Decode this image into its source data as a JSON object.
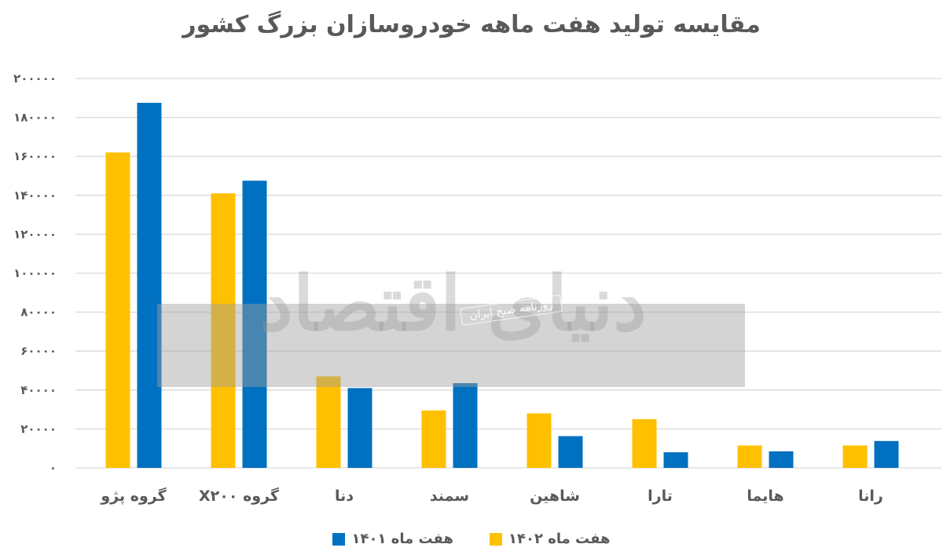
{
  "chart_data": {
    "type": "bar",
    "title": "مقایسه تولید هفت ماهه خودروسازان بزرگ کشور",
    "categories": [
      "گروه پژو",
      "گروه X۲۰۰",
      "دنا",
      "سمند",
      "شاهین",
      "تارا",
      "هایما",
      "رانا"
    ],
    "series": [
      {
        "name": "هفت ماه ۱۴۰۲",
        "color": "#FFC000",
        "values": [
          162000,
          141000,
          47000,
          29500,
          28000,
          25000,
          11500,
          11500
        ]
      },
      {
        "name": "هفت ماه ۱۴۰۱",
        "color": "#0070C0",
        "values": [
          187500,
          147500,
          41000,
          43500,
          16300,
          8000,
          8500,
          13800
        ]
      }
    ],
    "ylim": [
      0,
      200000
    ],
    "yticks": [
      0,
      20000,
      40000,
      60000,
      80000,
      100000,
      120000,
      140000,
      160000,
      180000,
      200000
    ],
    "ytick_labels": [
      "۰",
      "۲۰۰۰۰",
      "۴۰۰۰۰",
      "۶۰۰۰۰",
      "۸۰۰۰۰",
      "۱۰۰۰۰۰",
      "۱۲۰۰۰۰",
      "۱۴۰۰۰۰",
      "۱۶۰۰۰۰",
      "۱۸۰۰۰۰",
      "۲۰۰۰۰۰"
    ],
    "grid": true,
    "legend_position": "bottom"
  },
  "watermark": {
    "brand": "دنیای اقتصاد",
    "tagline": "روزنامه صبح ایران"
  }
}
